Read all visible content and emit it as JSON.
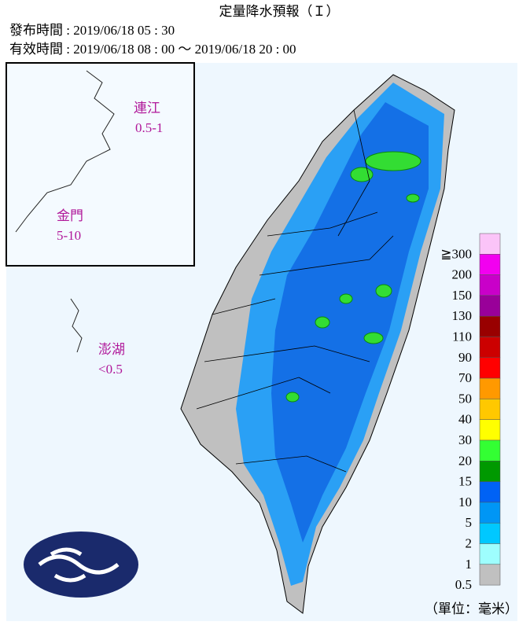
{
  "header": {
    "title": "定量降水預報（Ｉ）",
    "issued": "發布時間 : 2019/06/18 05 : 30",
    "valid": "有效時間 : 2019/06/18 08 : 00 ～ 2019/06/18 20 : 00"
  },
  "regions": [
    {
      "name": "連江",
      "range": "0.5-1"
    },
    {
      "name": "金門",
      "range": "5-10"
    },
    {
      "name": "澎湖",
      "range": "<0.5"
    }
  ],
  "legend": {
    "unit": "（單位：毫米）",
    "levels": [
      {
        "label": "≧300",
        "color": "#fbc4f8"
      },
      {
        "label": "200",
        "color": "#f200f0"
      },
      {
        "label": "150",
        "color": "#c900c9"
      },
      {
        "label": "130",
        "color": "#990099"
      },
      {
        "label": "110",
        "color": "#990000"
      },
      {
        "label": "90",
        "color": "#cc0000"
      },
      {
        "label": "70",
        "color": "#ff0000"
      },
      {
        "label": "50",
        "color": "#ff9900"
      },
      {
        "label": "40",
        "color": "#ffc800"
      },
      {
        "label": "30",
        "color": "#ffff00"
      },
      {
        "label": "20",
        "color": "#33ff33"
      },
      {
        "label": "15",
        "color": "#009900"
      },
      {
        "label": "10",
        "color": "#0062f5"
      },
      {
        "label": "5",
        "color": "#0096f5"
      },
      {
        "label": "2",
        "color": "#00c8ff"
      },
      {
        "label": "1",
        "color": "#9efefe"
      },
      {
        "label": "0.5",
        "color": "#c0c0c0"
      }
    ]
  }
}
